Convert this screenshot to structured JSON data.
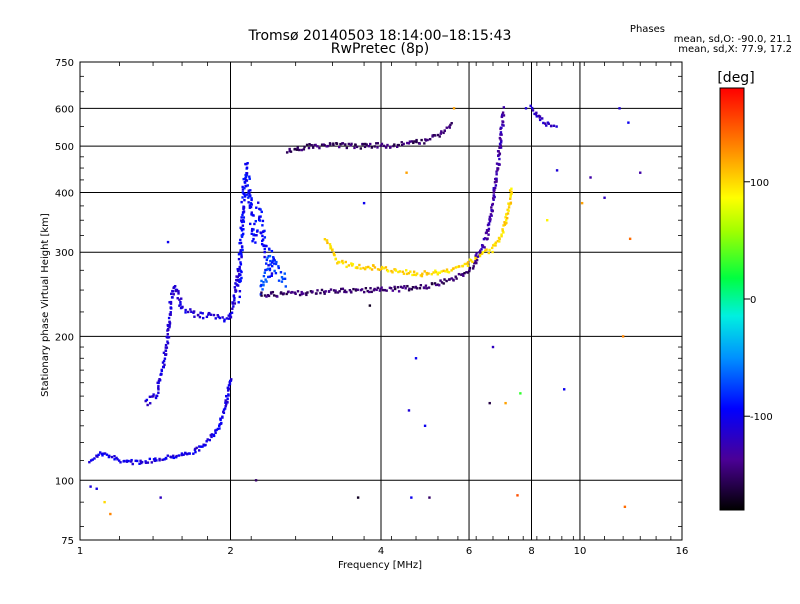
{
  "header": {
    "title": "Tromsø 20140503 18:14:00–18:15:43",
    "subtitle": "RwPretec (8p)"
  },
  "stats": {
    "heading": "Phases",
    "line_o": "mean, sd,O: -90.0, 21.1",
    "line_x": "mean, sd,X:  77.9, 17.2"
  },
  "colorbar": {
    "unit_label": "[deg]",
    "range": [
      -180,
      180
    ],
    "ticks": [
      100,
      0,
      -100
    ],
    "tick_labels": [
      "100",
      "0",
      "-100"
    ]
  },
  "chart_data": {
    "type": "scatter",
    "xlabel": "Frequency [MHz]",
    "ylabel": "Stationary phase Virtual Height [km]",
    "xscale": "log",
    "yscale": "log",
    "xlim": [
      1,
      16
    ],
    "ylim": [
      75,
      750
    ],
    "x_ticks": [
      1,
      2,
      4,
      6,
      8,
      10,
      16
    ],
    "x_tick_labels": [
      "1",
      "2",
      "4",
      "6",
      "8",
      "10",
      "16"
    ],
    "y_ticks": [
      75,
      100,
      200,
      300,
      400,
      500,
      600,
      750
    ],
    "y_tick_labels": [
      "75",
      "100",
      "200",
      "300",
      "400",
      "500",
      "600",
      "750"
    ],
    "major_grid_x": [
      2,
      4,
      6,
      8,
      10
    ],
    "major_grid_y": [
      100,
      200,
      300,
      400,
      500,
      600
    ],
    "grid": true,
    "color_encodes": "phase [deg]",
    "traces": [
      {
        "phase": -105,
        "spread": 4,
        "points": [
          [
            1.05,
            110
          ],
          [
            1.1,
            114
          ],
          [
            1.15,
            112
          ],
          [
            1.2,
            110
          ],
          [
            1.3,
            109
          ],
          [
            1.4,
            110
          ],
          [
            1.5,
            112
          ],
          [
            1.6,
            113
          ],
          [
            1.7,
            115
          ],
          [
            1.8,
            120
          ],
          [
            1.9,
            130
          ],
          [
            1.96,
            145
          ],
          [
            2.0,
            165
          ]
        ]
      },
      {
        "phase": -110,
        "spread": 6,
        "points": [
          [
            1.35,
            145
          ],
          [
            1.42,
            150
          ],
          [
            1.46,
            170
          ],
          [
            1.5,
            200
          ],
          [
            1.52,
            240
          ],
          [
            1.55,
            255
          ],
          [
            1.6,
            230
          ],
          [
            1.7,
            222
          ],
          [
            1.85,
            220
          ],
          [
            1.95,
            218
          ],
          [
            2.0,
            220
          ],
          [
            2.04,
            240
          ],
          [
            2.08,
            280
          ]
        ]
      },
      {
        "phase": -95,
        "spread": 30,
        "points": [
          [
            2.08,
            250
          ],
          [
            2.1,
            300
          ],
          [
            2.12,
            380
          ],
          [
            2.15,
            450
          ],
          [
            2.18,
            400
          ],
          [
            2.22,
            330
          ],
          [
            2.28,
            360
          ],
          [
            2.35,
            300
          ],
          [
            2.45,
            270
          ]
        ]
      },
      {
        "phase": -75,
        "spread": 20,
        "points": [
          [
            2.3,
            250
          ],
          [
            2.4,
            290
          ],
          [
            2.5,
            270
          ],
          [
            2.6,
            255
          ]
        ]
      },
      {
        "phase": -150,
        "spread": 5,
        "points": [
          [
            2.3,
            245
          ],
          [
            2.6,
            245
          ],
          [
            3.0,
            248
          ],
          [
            3.5,
            250
          ],
          [
            4.0,
            250
          ],
          [
            4.5,
            252
          ],
          [
            5.0,
            255
          ],
          [
            5.5,
            262
          ],
          [
            6.0,
            275
          ],
          [
            6.3,
            295
          ]
        ]
      },
      {
        "phase": -150,
        "spread": 5,
        "points": [
          [
            2.6,
            490
          ],
          [
            2.9,
            500
          ],
          [
            3.2,
            502
          ],
          [
            3.6,
            500
          ],
          [
            4.2,
            502
          ],
          [
            4.8,
            510
          ],
          [
            5.2,
            525
          ],
          [
            5.6,
            555
          ]
        ]
      },
      {
        "phase": 100,
        "spread": 5,
        "points": [
          [
            3.1,
            320
          ],
          [
            3.3,
            285
          ],
          [
            3.6,
            280
          ],
          [
            4.0,
            278
          ],
          [
            4.5,
            272
          ],
          [
            5.0,
            270
          ],
          [
            5.5,
            275
          ],
          [
            6.0,
            285
          ],
          [
            6.3,
            295
          ],
          [
            6.7,
            305
          ],
          [
            7.0,
            330
          ],
          [
            7.2,
            370
          ],
          [
            7.3,
            410
          ]
        ]
      },
      {
        "phase": -130,
        "spread": 6,
        "points": [
          [
            6.2,
            290
          ],
          [
            6.5,
            320
          ],
          [
            6.7,
            380
          ],
          [
            6.85,
            450
          ],
          [
            6.95,
            520
          ],
          [
            7.0,
            560
          ],
          [
            7.03,
            600
          ]
        ]
      },
      {
        "phase": -120,
        "spread": 5,
        "points": [
          [
            8.0,
            600
          ],
          [
            8.2,
            580
          ],
          [
            8.5,
            560
          ],
          [
            8.8,
            550
          ],
          [
            9.0,
            545
          ]
        ]
      }
    ],
    "scatter_points": [
      [
        1.05,
        97,
        -110
      ],
      [
        1.08,
        96,
        -105
      ],
      [
        1.12,
        90,
        100
      ],
      [
        1.15,
        85,
        130
      ],
      [
        1.45,
        92,
        -120
      ],
      [
        2.25,
        100,
        -150
      ],
      [
        3.6,
        92,
        -170
      ],
      [
        4.6,
        92,
        -100
      ],
      [
        5.0,
        92,
        -150
      ],
      [
        7.5,
        93,
        150
      ],
      [
        4.5,
        440,
        120
      ],
      [
        4.7,
        180,
        -100
      ],
      [
        4.55,
        140,
        -110
      ],
      [
        4.9,
        130,
        -100
      ],
      [
        6.7,
        190,
        -120
      ],
      [
        6.6,
        145,
        -160
      ],
      [
        7.1,
        145,
        120
      ],
      [
        7.6,
        152,
        30
      ],
      [
        9.3,
        155,
        -100
      ],
      [
        10.5,
        430,
        -130
      ],
      [
        11.2,
        390,
        -120
      ],
      [
        12.0,
        600,
        -110
      ],
      [
        12.5,
        560,
        -100
      ],
      [
        13.2,
        440,
        -130
      ],
      [
        12.2,
        200,
        130
      ],
      [
        12.6,
        320,
        140
      ],
      [
        8.6,
        350,
        90
      ],
      [
        3.7,
        380,
        -100
      ],
      [
        1.5,
        315,
        -100
      ],
      [
        3.8,
        232,
        -170
      ],
      [
        10.1,
        380,
        120
      ],
      [
        12.3,
        88,
        140
      ],
      [
        9.0,
        445,
        -110
      ],
      [
        5.6,
        600,
        120
      ],
      [
        7.8,
        600,
        -110
      ]
    ]
  }
}
